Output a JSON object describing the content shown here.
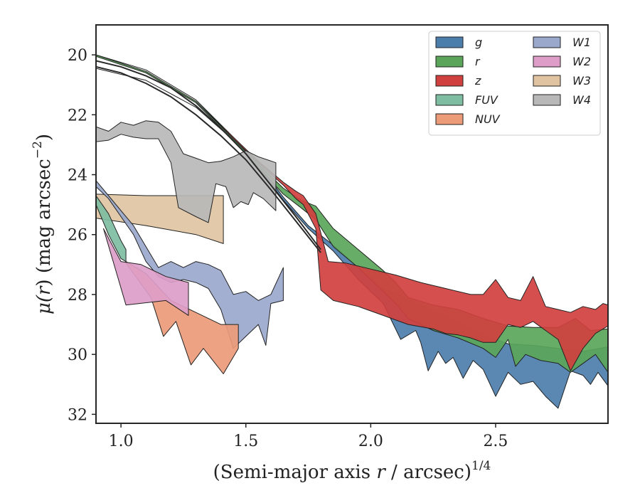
{
  "chart_data": {
    "type": "area",
    "title": "",
    "xlabel": "(Semi-major axis r / arcsec)^1/4",
    "xlabel_parts": {
      "prefix": "(Semi-major axis ",
      "var": "r",
      "suffix": " / arcsec)",
      "sup": "1/4"
    },
    "ylabel": "μ(r) (mag arcsec^-2)",
    "ylabel_parts": {
      "mu": "μ(",
      "var": "r",
      "mid": ") (mag arcsec",
      "sup": "−2",
      "end": ")"
    },
    "xlim": [
      0.9,
      2.95
    ],
    "ylim": [
      32.3,
      19.0
    ],
    "y_inverted": true,
    "xticks": [
      {
        "value": 1.0,
        "label": "1.0"
      },
      {
        "value": 1.5,
        "label": "1.5"
      },
      {
        "value": 2.0,
        "label": "2.0"
      },
      {
        "value": 2.5,
        "label": "2.5"
      }
    ],
    "yticks": [
      {
        "value": 20,
        "label": "20"
      },
      {
        "value": 22,
        "label": "22"
      },
      {
        "value": 24,
        "label": "24"
      },
      {
        "value": 26,
        "label": "26"
      },
      {
        "value": 28,
        "label": "28"
      },
      {
        "value": 30,
        "label": "30"
      },
      {
        "value": 32,
        "label": "32"
      }
    ],
    "grid": false,
    "legend_position": "top-right",
    "legend_columns": 2,
    "series": [
      {
        "name": "g",
        "color": "#4c7eac",
        "upper": [
          [
            0.9,
            20.45
          ],
          [
            1.1,
            20.85
          ],
          [
            1.3,
            21.75
          ],
          [
            1.45,
            22.85
          ],
          [
            1.55,
            23.65
          ],
          [
            1.65,
            24.75
          ],
          [
            1.75,
            25.7
          ],
          [
            1.85,
            26.35
          ],
          [
            1.95,
            27.1
          ],
          [
            2.05,
            27.8
          ],
          [
            2.15,
            28.15
          ],
          [
            2.25,
            28.55
          ],
          [
            2.35,
            28.95
          ],
          [
            2.45,
            29.35
          ],
          [
            2.55,
            29.65
          ],
          [
            2.65,
            29.7
          ],
          [
            2.75,
            29.8
          ],
          [
            2.85,
            29.9
          ],
          [
            2.95,
            29.75
          ]
        ],
        "lower": [
          [
            0.9,
            20.45
          ],
          [
            1.1,
            20.85
          ],
          [
            1.3,
            21.75
          ],
          [
            1.45,
            22.85
          ],
          [
            1.55,
            23.75
          ],
          [
            1.65,
            24.85
          ],
          [
            1.75,
            25.8
          ],
          [
            1.85,
            26.55
          ],
          [
            1.95,
            27.5
          ],
          [
            2.05,
            28.3
          ],
          [
            2.12,
            29.5
          ],
          [
            2.18,
            29.2
          ],
          [
            2.2,
            29.6
          ],
          [
            2.23,
            30.55
          ],
          [
            2.27,
            29.9
          ],
          [
            2.3,
            30.3
          ],
          [
            2.33,
            30.1
          ],
          [
            2.37,
            30.8
          ],
          [
            2.41,
            30.2
          ],
          [
            2.45,
            30.5
          ],
          [
            2.5,
            31.4
          ],
          [
            2.55,
            30.6
          ],
          [
            2.6,
            31.0
          ],
          [
            2.65,
            30.9
          ],
          [
            2.7,
            31.4
          ],
          [
            2.75,
            31.8
          ],
          [
            2.8,
            30.55
          ],
          [
            2.85,
            30.7
          ],
          [
            2.88,
            31.0
          ],
          [
            2.91,
            30.6
          ],
          [
            2.95,
            31.05
          ]
        ]
      },
      {
        "name": "r",
        "color": "#5aa55a",
        "upper": [
          [
            0.9,
            20.0
          ],
          [
            1.1,
            20.55
          ],
          [
            1.3,
            21.55
          ],
          [
            1.45,
            22.8
          ],
          [
            1.55,
            23.65
          ],
          [
            1.65,
            24.45
          ],
          [
            1.72,
            24.85
          ],
          [
            1.78,
            25.05
          ],
          [
            1.85,
            25.8
          ],
          [
            1.95,
            26.5
          ],
          [
            2.05,
            27.2
          ],
          [
            2.1,
            27.6
          ],
          [
            2.15,
            28.1
          ],
          [
            2.25,
            28.35
          ],
          [
            2.35,
            28.5
          ],
          [
            2.45,
            28.8
          ],
          [
            2.55,
            29.05
          ],
          [
            2.65,
            29.1
          ],
          [
            2.75,
            29.1
          ],
          [
            2.82,
            28.8
          ],
          [
            2.88,
            29.2
          ],
          [
            2.95,
            29.15
          ]
        ],
        "lower": [
          [
            0.9,
            20.05
          ],
          [
            1.1,
            20.6
          ],
          [
            1.3,
            21.6
          ],
          [
            1.45,
            22.85
          ],
          [
            1.55,
            23.75
          ],
          [
            1.65,
            24.65
          ],
          [
            1.72,
            25.1
          ],
          [
            1.78,
            25.5
          ],
          [
            1.85,
            26.4
          ],
          [
            1.95,
            27.1
          ],
          [
            2.05,
            27.9
          ],
          [
            2.1,
            28.3
          ],
          [
            2.15,
            28.8
          ],
          [
            2.25,
            29.2
          ],
          [
            2.35,
            29.45
          ],
          [
            2.45,
            29.8
          ],
          [
            2.5,
            30.1
          ],
          [
            2.55,
            29.5
          ],
          [
            2.58,
            30.4
          ],
          [
            2.62,
            30.0
          ],
          [
            2.68,
            30.2
          ],
          [
            2.75,
            30.3
          ],
          [
            2.8,
            30.6
          ],
          [
            2.85,
            30.3
          ],
          [
            2.9,
            30.0
          ],
          [
            2.95,
            30.6
          ]
        ]
      },
      {
        "name": "z",
        "color": "#d0403f",
        "upper": [
          [
            0.9,
            20.0
          ],
          [
            1.1,
            20.5
          ],
          [
            1.3,
            21.5
          ],
          [
            1.45,
            22.75
          ],
          [
            1.55,
            23.55
          ],
          [
            1.65,
            24.25
          ],
          [
            1.7,
            24.55
          ],
          [
            1.73,
            24.7
          ],
          [
            1.78,
            25.3
          ],
          [
            1.83,
            26.9
          ],
          [
            1.9,
            26.95
          ],
          [
            2.0,
            27.15
          ],
          [
            2.1,
            27.35
          ],
          [
            2.2,
            27.6
          ],
          [
            2.3,
            27.8
          ],
          [
            2.4,
            28.0
          ],
          [
            2.45,
            28.0
          ],
          [
            2.5,
            27.5
          ],
          [
            2.55,
            28.1
          ],
          [
            2.6,
            28.2
          ],
          [
            2.65,
            27.4
          ],
          [
            2.7,
            28.4
          ],
          [
            2.75,
            28.5
          ],
          [
            2.8,
            28.6
          ],
          [
            2.85,
            28.4
          ],
          [
            2.9,
            28.5
          ],
          [
            2.93,
            28.3
          ],
          [
            2.95,
            28.35
          ]
        ],
        "lower": [
          [
            0.9,
            20.0
          ],
          [
            1.1,
            20.5
          ],
          [
            1.3,
            21.5
          ],
          [
            1.45,
            22.8
          ],
          [
            1.55,
            23.6
          ],
          [
            1.65,
            24.35
          ],
          [
            1.7,
            24.8
          ],
          [
            1.73,
            25.0
          ],
          [
            1.78,
            25.8
          ],
          [
            1.8,
            27.85
          ],
          [
            1.85,
            28.2
          ],
          [
            1.95,
            28.4
          ],
          [
            2.05,
            28.7
          ],
          [
            2.15,
            29.0
          ],
          [
            2.25,
            29.15
          ],
          [
            2.3,
            29.3
          ],
          [
            2.35,
            29.35
          ],
          [
            2.4,
            29.45
          ],
          [
            2.45,
            29.6
          ],
          [
            2.5,
            29.6
          ],
          [
            2.55,
            29.0
          ],
          [
            2.6,
            29.1
          ],
          [
            2.65,
            28.9
          ],
          [
            2.7,
            29.2
          ],
          [
            2.75,
            29.5
          ],
          [
            2.8,
            30.55
          ],
          [
            2.85,
            29.8
          ],
          [
            2.9,
            29.3
          ],
          [
            2.95,
            29.05
          ]
        ]
      },
      {
        "name": "FUV",
        "color": "#7ebda2",
        "upper": [
          [
            0.9,
            24.7
          ],
          [
            0.95,
            25.3
          ],
          [
            1.0,
            26.2
          ],
          [
            1.02,
            26.5
          ]
        ],
        "lower": [
          [
            0.9,
            25.0
          ],
          [
            0.95,
            26.0
          ],
          [
            1.0,
            26.8
          ],
          [
            1.02,
            26.9
          ]
        ]
      },
      {
        "name": "NUV",
        "color": "#eb9b78",
        "upper": [
          [
            1.02,
            26.9
          ],
          [
            1.1,
            27.3
          ],
          [
            1.2,
            28.2
          ],
          [
            1.3,
            28.6
          ],
          [
            1.4,
            29.0
          ],
          [
            1.47,
            29.0
          ]
        ],
        "lower": [
          [
            1.02,
            26.95
          ],
          [
            1.12,
            28.1
          ],
          [
            1.17,
            29.4
          ],
          [
            1.22,
            28.9
          ],
          [
            1.28,
            30.35
          ],
          [
            1.33,
            29.8
          ],
          [
            1.41,
            30.65
          ],
          [
            1.47,
            29.8
          ]
        ]
      },
      {
        "name": "W1",
        "color": "#9aa8cc",
        "upper": [
          [
            0.9,
            24.2
          ],
          [
            0.95,
            24.7
          ],
          [
            1.0,
            25.2
          ],
          [
            1.05,
            25.7
          ],
          [
            1.1,
            26.4
          ],
          [
            1.15,
            27.1
          ],
          [
            1.2,
            26.9
          ],
          [
            1.25,
            27.1
          ],
          [
            1.3,
            26.9
          ],
          [
            1.35,
            27.0
          ],
          [
            1.4,
            27.2
          ],
          [
            1.45,
            28.0
          ],
          [
            1.5,
            27.9
          ],
          [
            1.55,
            28.2
          ],
          [
            1.6,
            28.0
          ],
          [
            1.65,
            27.1
          ]
        ],
        "lower": [
          [
            0.9,
            24.4
          ],
          [
            0.95,
            24.8
          ],
          [
            1.0,
            25.4
          ],
          [
            1.05,
            26.0
          ],
          [
            1.1,
            26.9
          ],
          [
            1.15,
            27.4
          ],
          [
            1.2,
            27.6
          ],
          [
            1.25,
            27.5
          ],
          [
            1.3,
            27.6
          ],
          [
            1.35,
            27.8
          ],
          [
            1.4,
            28.5
          ],
          [
            1.45,
            29.8
          ],
          [
            1.5,
            29.4
          ],
          [
            1.55,
            29.0
          ],
          [
            1.58,
            29.7
          ],
          [
            1.6,
            28.3
          ],
          [
            1.65,
            28.2
          ]
        ]
      },
      {
        "name": "W2",
        "color": "#dd9dc8",
        "upper": [
          [
            0.93,
            25.8
          ],
          [
            1.0,
            26.9
          ],
          [
            1.08,
            27.0
          ],
          [
            1.18,
            27.4
          ],
          [
            1.27,
            27.6
          ]
        ],
        "lower": [
          [
            0.93,
            25.8
          ],
          [
            1.02,
            28.35
          ],
          [
            1.18,
            28.2
          ],
          [
            1.27,
            28.7
          ]
        ]
      },
      {
        "name": "W3",
        "color": "#e0c4a2",
        "upper": [
          [
            0.9,
            24.65
          ],
          [
            1.1,
            24.7
          ],
          [
            1.3,
            24.7
          ],
          [
            1.41,
            24.7
          ]
        ],
        "lower": [
          [
            0.9,
            25.45
          ],
          [
            1.1,
            25.7
          ],
          [
            1.3,
            26.0
          ],
          [
            1.41,
            26.3
          ]
        ]
      },
      {
        "name": "W4",
        "color": "#b8b8b8",
        "upper": [
          [
            0.9,
            22.4
          ],
          [
            0.95,
            22.55
          ],
          [
            1.0,
            22.25
          ],
          [
            1.05,
            22.35
          ],
          [
            1.1,
            22.2
          ],
          [
            1.15,
            22.25
          ],
          [
            1.2,
            22.55
          ],
          [
            1.25,
            23.3
          ],
          [
            1.3,
            23.45
          ],
          [
            1.35,
            23.6
          ],
          [
            1.4,
            23.55
          ],
          [
            1.45,
            23.4
          ],
          [
            1.5,
            23.2
          ],
          [
            1.55,
            23.4
          ],
          [
            1.62,
            23.6
          ]
        ],
        "lower": [
          [
            0.9,
            22.9
          ],
          [
            0.95,
            22.85
          ],
          [
            1.0,
            22.65
          ],
          [
            1.05,
            22.75
          ],
          [
            1.1,
            22.8
          ],
          [
            1.15,
            22.8
          ],
          [
            1.2,
            23.6
          ],
          [
            1.23,
            25.1
          ],
          [
            1.3,
            25.4
          ],
          [
            1.35,
            25.6
          ],
          [
            1.38,
            24.3
          ],
          [
            1.42,
            24.4
          ],
          [
            1.45,
            25.1
          ],
          [
            1.48,
            24.9
          ],
          [
            1.51,
            25.0
          ],
          [
            1.53,
            24.6
          ],
          [
            1.57,
            24.8
          ],
          [
            1.62,
            25.2
          ]
        ]
      }
    ],
    "model_curves": [
      [
        [
          0.9,
          20.2
        ],
        [
          1.0,
          20.4
        ],
        [
          1.1,
          20.7
        ],
        [
          1.2,
          21.1
        ],
        [
          1.3,
          21.7
        ],
        [
          1.4,
          22.45
        ],
        [
          1.5,
          23.3
        ],
        [
          1.6,
          24.35
        ],
        [
          1.7,
          25.4
        ],
        [
          1.8,
          26.5
        ]
      ],
      [
        [
          0.9,
          20.4
        ],
        [
          1.0,
          20.6
        ],
        [
          1.1,
          20.95
        ],
        [
          1.2,
          21.4
        ],
        [
          1.3,
          22.0
        ],
        [
          1.4,
          22.7
        ],
        [
          1.5,
          23.5
        ],
        [
          1.6,
          24.5
        ],
        [
          1.7,
          25.55
        ],
        [
          1.8,
          26.6
        ]
      ]
    ]
  }
}
